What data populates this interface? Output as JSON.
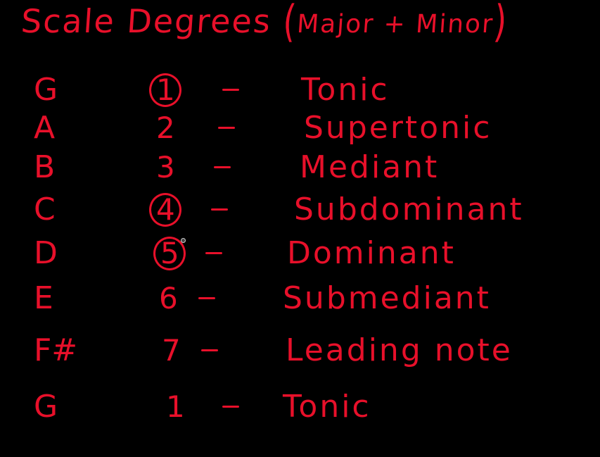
{
  "colors": {
    "background": "#000000",
    "ink": "#e8102a"
  },
  "title": {
    "main": "Scale Degrees",
    "open_paren": "(",
    "subtitle": "Major + Minor",
    "close_paren": ")"
  },
  "rows": [
    {
      "note": "G",
      "degree": "1",
      "circled": true,
      "dash": "-",
      "name": "Tonic"
    },
    {
      "note": "A",
      "degree": "2",
      "circled": false,
      "dash": "-",
      "name": "Supertonic"
    },
    {
      "note": "B",
      "degree": "3",
      "circled": false,
      "dash": "-",
      "name": "Mediant"
    },
    {
      "note": "C",
      "degree": "4",
      "circled": true,
      "dash": "-",
      "name": "Subdominant"
    },
    {
      "note": "D",
      "degree": "5",
      "circled": true,
      "dash": "-",
      "name": "Dominant"
    },
    {
      "note": "E",
      "degree": "6",
      "circled": false,
      "dash": "-",
      "name": "Submediant"
    },
    {
      "note": "F#",
      "degree": "7",
      "circled": false,
      "dash": "-",
      "name": "Leading note"
    },
    {
      "note": "G",
      "degree": "1",
      "circled": false,
      "dash": "-",
      "name": "Tonic"
    }
  ]
}
